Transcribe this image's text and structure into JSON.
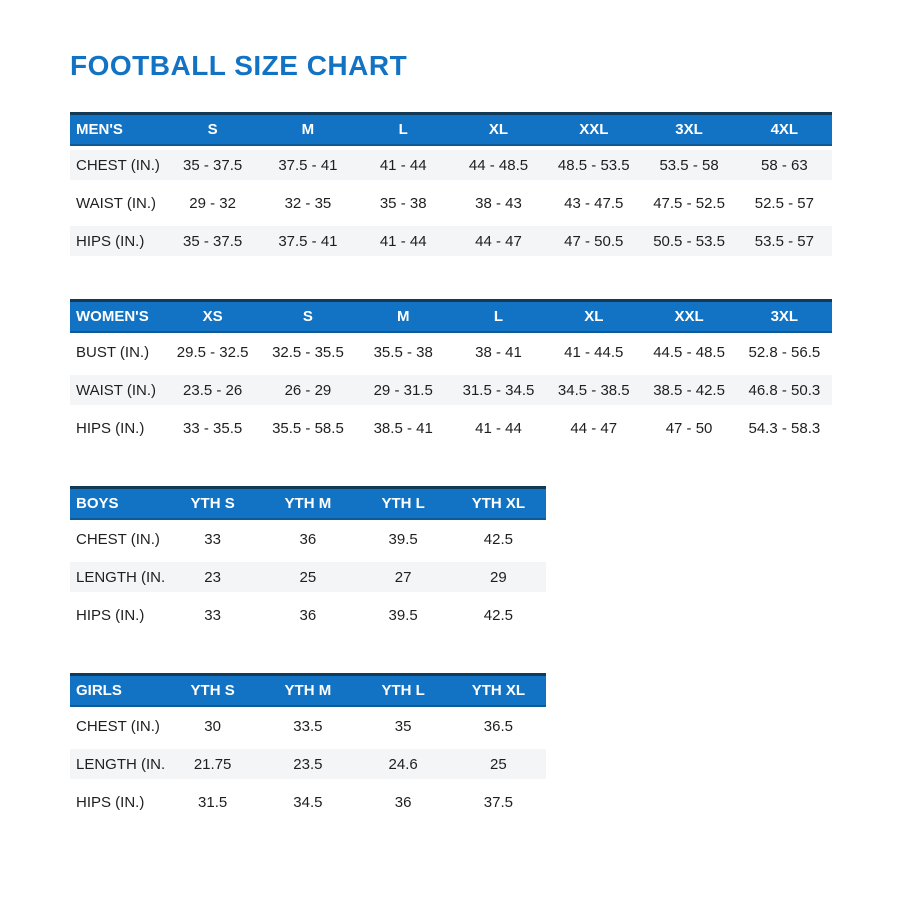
{
  "page": {
    "title": "FOOTBALL SIZE CHART",
    "accent_color": "#1273c4"
  },
  "tables": [
    {
      "name": "MEN'S",
      "columns": [
        "S",
        "M",
        "L",
        "XL",
        "XXL",
        "3XL",
        "4XL"
      ],
      "rows": [
        {
          "label": "CHEST (IN.)",
          "values": [
            "35 - 37.5",
            "37.5 - 41",
            "41 - 44",
            "44 - 48.5",
            "48.5 - 53.5",
            "53.5 - 58",
            "58 - 63"
          ]
        },
        {
          "label": "WAIST (IN.)",
          "values": [
            "29 - 32",
            "32 - 35",
            "35 - 38",
            "38 - 43",
            "43 - 47.5",
            "47.5 - 52.5",
            "52.5 - 57"
          ]
        },
        {
          "label": "HIPS (IN.)",
          "values": [
            "35 - 37.5",
            "37.5 - 41",
            "41 - 44",
            "44 - 47",
            "47 - 50.5",
            "50.5 - 53.5",
            "53.5 - 57"
          ]
        }
      ]
    },
    {
      "name": "WOMEN'S",
      "columns": [
        "XS",
        "S",
        "M",
        "L",
        "XL",
        "XXL",
        "3XL"
      ],
      "rows": [
        {
          "label": "BUST (IN.)",
          "values": [
            "29.5 - 32.5",
            "32.5 - 35.5",
            "35.5 - 38",
            "38 - 41",
            "41 - 44.5",
            "44.5 - 48.5",
            "52.8 - 56.5"
          ]
        },
        {
          "label": "WAIST (IN.)",
          "values": [
            "23.5 - 26",
            "26 - 29",
            "29 - 31.5",
            "31.5 - 34.5",
            "34.5 - 38.5",
            "38.5 - 42.5",
            "46.8 - 50.3"
          ]
        },
        {
          "label": "HIPS (IN.)",
          "values": [
            "33 - 35.5",
            "35.5 - 58.5",
            "38.5 - 41",
            "41 - 44",
            "44 - 47",
            "47 - 50",
            "54.3 - 58.3"
          ]
        }
      ]
    },
    {
      "name": "BOYS",
      "columns": [
        "YTH S",
        "YTH M",
        "YTH L",
        "YTH XL"
      ],
      "rows": [
        {
          "label": "CHEST (IN.)",
          "values": [
            "33",
            "36",
            "39.5",
            "42.5"
          ]
        },
        {
          "label": "LENGTH (IN.)",
          "values": [
            "23",
            "25",
            "27",
            "29"
          ]
        },
        {
          "label": "HIPS (IN.)",
          "values": [
            "33",
            "36",
            "39.5",
            "42.5"
          ]
        }
      ]
    },
    {
      "name": "GIRLS",
      "columns": [
        "YTH S",
        "YTH M",
        "YTH L",
        "YTH XL"
      ],
      "rows": [
        {
          "label": "CHEST (IN.)",
          "values": [
            "30",
            "33.5",
            "35",
            "36.5"
          ]
        },
        {
          "label": "LENGTH (IN.)",
          "values": [
            "21.75",
            "23.5",
            "24.6",
            "25"
          ]
        },
        {
          "label": "HIPS (IN.)",
          "values": [
            "31.5",
            "34.5",
            "36",
            "37.5"
          ]
        }
      ]
    }
  ]
}
